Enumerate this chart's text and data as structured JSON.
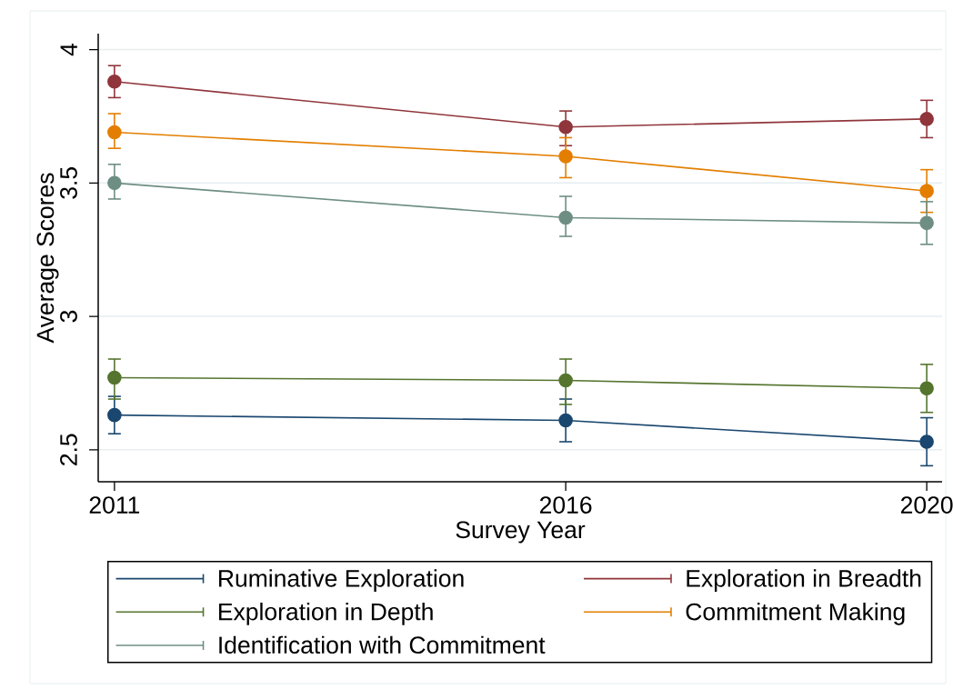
{
  "chart_data": {
    "type": "line",
    "xlabel": "Survey Year",
    "ylabel": "Average Scores",
    "x": [
      2011,
      2016,
      2020
    ],
    "xlim": [
      2010.82,
      2020.17
    ],
    "xticks": [
      2011,
      2016,
      2020
    ],
    "ylim": [
      2.38,
      4.06
    ],
    "yticks": [
      2.5,
      3,
      3.5,
      4
    ],
    "grid": "y",
    "legend": "bottom",
    "marker": "circle",
    "line_style": "solid",
    "series": [
      {
        "name": "Ruminative Exploration",
        "color": "#1a476f",
        "values": [
          2.63,
          2.61,
          2.53
        ],
        "errors": [
          [
            2.56,
            2.7
          ],
          [
            2.53,
            2.69
          ],
          [
            2.44,
            2.62
          ]
        ]
      },
      {
        "name": "Exploration in Breadth",
        "color": "#90353b",
        "values": [
          3.88,
          3.71,
          3.74
        ],
        "errors": [
          [
            3.82,
            3.94
          ],
          [
            3.64,
            3.77
          ],
          [
            3.67,
            3.81
          ]
        ]
      },
      {
        "name": "Exploration in Depth",
        "color": "#55752f",
        "values": [
          2.77,
          2.76,
          2.73
        ],
        "errors": [
          [
            2.69,
            2.84
          ],
          [
            2.67,
            2.84
          ],
          [
            2.64,
            2.82
          ]
        ]
      },
      {
        "name": "Commitment Making",
        "color": "#e37e00",
        "values": [
          3.69,
          3.6,
          3.47
        ],
        "errors": [
          [
            3.63,
            3.76
          ],
          [
            3.52,
            3.67
          ],
          [
            3.39,
            3.55
          ]
        ]
      },
      {
        "name": "Identification with Commitment",
        "color": "#6e8e84",
        "values": [
          3.5,
          3.37,
          3.35
        ],
        "errors": [
          [
            3.44,
            3.57
          ],
          [
            3.3,
            3.45
          ],
          [
            3.27,
            3.43
          ]
        ]
      }
    ]
  }
}
